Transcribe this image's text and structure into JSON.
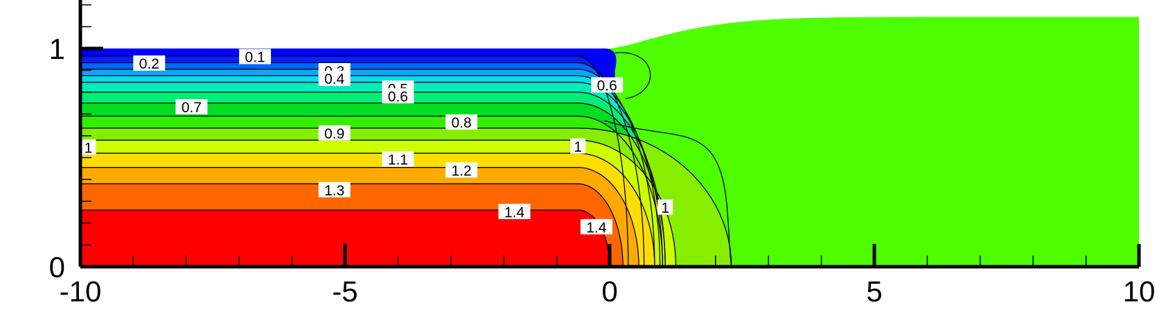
{
  "chart_data": {
    "type": "contour",
    "title": "",
    "xlabel": "",
    "ylabel": "",
    "xlim": [
      -10,
      10
    ],
    "ylim": [
      0,
      1.2
    ],
    "x_ticks": [
      {
        "value": -10,
        "label": "-10"
      },
      {
        "value": -5,
        "label": "-5"
      },
      {
        "value": 0,
        "label": "0"
      },
      {
        "value": 5,
        "label": "5"
      },
      {
        "value": 10,
        "label": "10"
      }
    ],
    "y_ticks": [
      {
        "value": 0,
        "label": "0"
      },
      {
        "value": 1,
        "label": "1"
      }
    ],
    "levels": [
      0.1,
      0.2,
      0.3,
      0.4,
      0.5,
      0.6,
      0.7,
      0.8,
      0.9,
      1,
      1.1,
      1.2,
      1.3,
      1.4
    ],
    "colors": {
      "level_0": "#0000ff",
      "level_0.1": "#0022ff",
      "level_0.2": "#0066ff",
      "level_0.3": "#00aaff",
      "level_0.4": "#00ddee",
      "level_0.5": "#00eebb",
      "level_0.6": "#00ee77",
      "level_0.7": "#00dd22",
      "level_0.8": "#33ee00",
      "level_0.9": "#88ee00",
      "level_1": "#ccff00",
      "level_1.1": "#ffdd00",
      "level_1.2": "#ffaa00",
      "level_1.3": "#ff6600",
      "level_1.4": "#ff0000",
      "downstream": "#4dff00"
    },
    "contour_labels": [
      {
        "text": "0.1",
        "x": -6.7,
        "y": 0.96
      },
      {
        "text": "0.2",
        "x": -8.7,
        "y": 0.93
      },
      {
        "text": "0.3",
        "x": -5.2,
        "y": 0.895
      },
      {
        "text": "0.4",
        "x": -5.2,
        "y": 0.86
      },
      {
        "text": "0.5",
        "x": -4.0,
        "y": 0.815
      },
      {
        "text": "0.6",
        "x": -4.0,
        "y": 0.78
      },
      {
        "text": "0.7",
        "x": -7.9,
        "y": 0.73
      },
      {
        "text": "0.8",
        "x": -2.8,
        "y": 0.66
      },
      {
        "text": "0.9",
        "x": -5.2,
        "y": 0.61
      },
      {
        "text": "1",
        "x": -9.85,
        "y": 0.545
      },
      {
        "text": "1.1",
        "x": -4.0,
        "y": 0.49
      },
      {
        "text": "1.2",
        "x": -2.8,
        "y": 0.44
      },
      {
        "text": "1.3",
        "x": -5.2,
        "y": 0.35
      },
      {
        "text": "1.4",
        "x": -1.8,
        "y": 0.25
      },
      {
        "text": "0.6",
        "x": -0.05,
        "y": 0.83
      },
      {
        "text": "1",
        "x": -0.6,
        "y": 0.55
      },
      {
        "text": "1",
        "x": 1.05,
        "y": 0.27
      },
      {
        "text": "1.4",
        "x": -0.25,
        "y": 0.18
      }
    ],
    "grid": false,
    "legend": "none"
  }
}
